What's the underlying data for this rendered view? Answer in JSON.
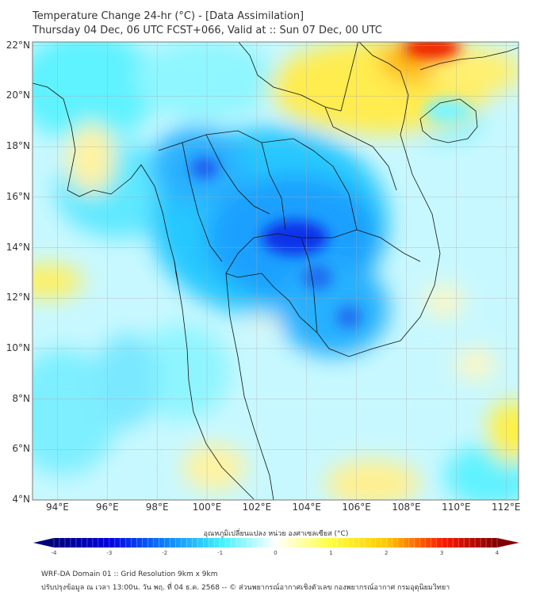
{
  "header": {
    "title": "Temperature Change 24-hr (°C) - [Data Assimilation]",
    "subtitle": "Thursday 04 Dec, 06 UTC FCST+066, Valid at :: Sun 07 Dec, 00 UTC"
  },
  "map": {
    "lat_labels": [
      "22°N",
      "20°N",
      "18°N",
      "16°N",
      "14°N",
      "12°N",
      "10°N",
      "8°N",
      "6°N",
      "4°N"
    ],
    "lon_labels": [
      "94°E",
      "96°E",
      "98°E",
      "100°E",
      "102°E",
      "104°E",
      "106°E",
      "108°E",
      "110°E",
      "112°E"
    ],
    "lat_values": [
      22,
      20,
      18,
      16,
      14,
      12,
      10,
      8,
      6,
      4
    ],
    "lon_values": [
      94,
      96,
      98,
      100,
      102,
      104,
      106,
      108,
      110,
      112
    ],
    "extent": {
      "lon_min": 93,
      "lon_max": 112.5,
      "lat_min": 4,
      "lat_max": 22.15
    }
  },
  "colorbar": {
    "title": "อุณหภูมิเปลี่ยนแปลง หน่วย องศาเซลเซียส (°C)",
    "ticks": [
      "-4",
      "-3",
      "-2",
      "-1",
      "0",
      "1",
      "2",
      "3",
      "4"
    ],
    "range": [
      -4,
      4
    ],
    "colors": {
      "min": "#00007a",
      "neg3": "#0000e0",
      "neg2": "#0a80ff",
      "neg1": "#3ef0ff",
      "zero": "#ffffff",
      "pos1": "#ffff40",
      "pos2": "#ffc800",
      "pos3": "#ff1a00",
      "max": "#800000"
    }
  },
  "footer": {
    "line1": "WRF-DA Domain 01 :: Grid Resolution 9km x 9km",
    "line2": "ปรับปรุงข้อมูล ณ เวลา 13:00น. วัน พฤ. ที่ 04 ธ.ค. 2568 -- © ส่วนพยากรณ์อากาศเชิงตัวเลข กองพยากรณ์อากาศ กรมอุตุนิยมวิทยา"
  }
}
